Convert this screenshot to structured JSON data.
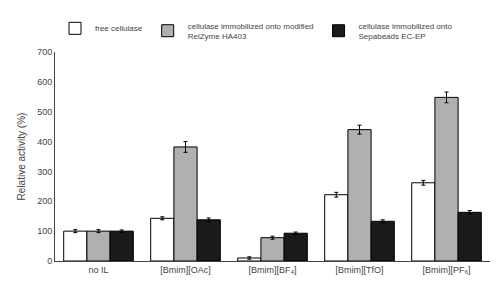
{
  "chart_data": {
    "type": "bar",
    "categories": [
      "no IL",
      "[Bmim][OAc]",
      "[Bmim][BF₄]",
      "[Bmim][TfO]",
      "[Bmim][PF₆]"
    ],
    "series": [
      {
        "name": "free cellulase",
        "color": "#ffffff",
        "values": [
          100,
          143,
          10,
          222,
          262
        ],
        "errors": [
          5,
          5,
          4,
          8,
          8
        ]
      },
      {
        "name": "cellulase immobilized onto modified\nRelZyme HA403",
        "color": "#b0b0b0",
        "values": [
          100,
          382,
          78,
          440,
          548
        ],
        "errors": [
          5,
          18,
          5,
          15,
          18
        ]
      },
      {
        "name": "cellulase immobilized onto\nSepabeads EC-EP",
        "color": "#1a1a1a",
        "values": [
          100,
          138,
          93,
          133,
          163
        ],
        "errors": [
          4,
          6,
          4,
          5,
          6
        ]
      }
    ],
    "ylabel": "Relative activity (%)",
    "ylim": [
      0,
      700
    ],
    "yticks": [
      0,
      100,
      200,
      300,
      400,
      500,
      600,
      700
    ],
    "grid": false,
    "legend": "upper left"
  }
}
